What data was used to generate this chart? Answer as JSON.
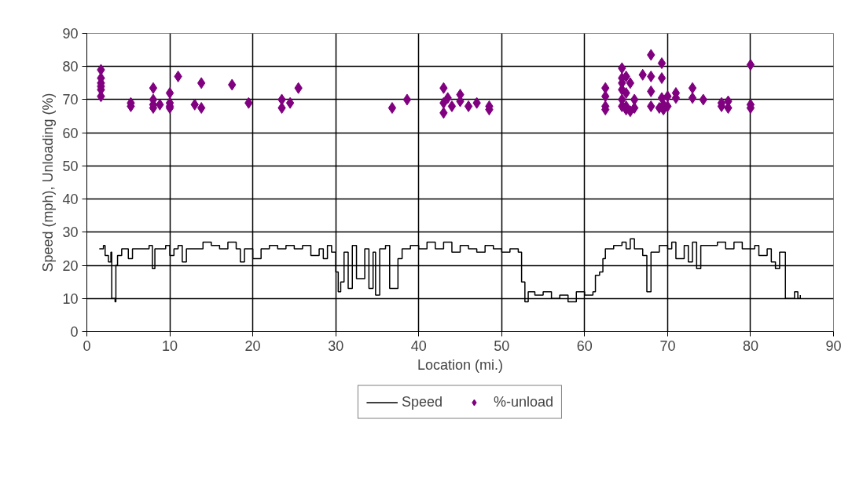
{
  "chart_data": {
    "type": "step",
    "xlabel": "Location (mi.)",
    "ylabel": "Speed (mph), Unloading (%)",
    "xlim": [
      0,
      90
    ],
    "ylim": [
      0,
      90
    ],
    "xticks": [
      0,
      10,
      20,
      30,
      40,
      50,
      60,
      70,
      80,
      90
    ],
    "yticks": [
      0,
      10,
      20,
      30,
      40,
      50,
      60,
      70,
      80,
      90
    ],
    "grid": true,
    "legend": "bottom",
    "series": [
      {
        "name": "Speed",
        "color": "#000000",
        "marker": "none",
        "x": [
          1.5,
          2,
          2.2,
          2.6,
          2.9,
          3.0,
          3.4,
          3.5,
          3.7,
          4.2,
          5,
          5.5,
          6.5,
          7.5,
          7.9,
          8.2,
          9,
          9.5,
          10,
          10.5,
          11,
          11.5,
          12,
          13,
          14,
          15,
          16,
          17,
          18,
          18.5,
          19,
          20,
          21,
          22,
          23,
          24,
          25,
          26,
          27,
          28,
          28.5,
          29,
          29.5,
          30,
          30.3,
          30.6,
          31,
          31.5,
          32,
          32.5,
          33,
          33.5,
          34,
          34.5,
          34.8,
          35.3,
          36,
          36.5,
          37,
          37.5,
          38,
          39,
          40,
          41,
          42,
          43,
          44,
          45,
          46,
          47,
          48,
          49,
          50,
          51,
          52,
          52.4,
          52.8,
          53.2,
          54,
          55,
          56,
          57,
          58,
          59,
          60,
          61,
          61.3,
          61.8,
          62.2,
          62.5,
          63.5,
          64.5,
          65,
          65.5,
          66,
          67,
          67.5,
          68,
          69,
          70,
          70.5,
          71,
          72,
          72.5,
          73,
          73.5,
          74,
          75,
          76,
          77,
          78,
          79,
          80,
          80.5,
          81,
          82,
          82.5,
          83,
          83.5,
          84,
          84.2,
          85,
          85.3,
          85.7,
          86
        ],
        "values": [
          25,
          26,
          23,
          21,
          24,
          10,
          9,
          20,
          23,
          25,
          22,
          25,
          25,
          26,
          19,
          25,
          25,
          26,
          23,
          25,
          26,
          21,
          25,
          25,
          27,
          26,
          25,
          27,
          25,
          21,
          25,
          22,
          25,
          26,
          25,
          26,
          25,
          26,
          23,
          25,
          22,
          26,
          24,
          18,
          12,
          15,
          24,
          13,
          26,
          16,
          16,
          25,
          13,
          24,
          11,
          25,
          26,
          13,
          13,
          22,
          25,
          26,
          25,
          27,
          25,
          27,
          24,
          26,
          25,
          24,
          26,
          25,
          24,
          25,
          24,
          15,
          9,
          12,
          11,
          12,
          10,
          11,
          9,
          12,
          11,
          12,
          17,
          18,
          22,
          25,
          26,
          27,
          25,
          28,
          25,
          23,
          12,
          24,
          26,
          25,
          27,
          22,
          26,
          21,
          27,
          19,
          26,
          26,
          27,
          25,
          27,
          25,
          25,
          26,
          23,
          25,
          21,
          19,
          24,
          24,
          10,
          10,
          12,
          10,
          11
        ]
      },
      {
        "name": "%-unload",
        "type": "scatter",
        "color": "#800080",
        "marker": "diamond",
        "x": [
          1.7,
          1.7,
          1.7,
          1.7,
          1.7,
          1.7,
          5.3,
          5.3,
          8,
          8,
          8,
          8,
          8.8,
          10,
          10,
          10,
          10,
          11,
          13,
          13.8,
          13.8,
          17.5,
          19.5,
          23.5,
          23.5,
          24.5,
          25.5,
          36.8,
          38.6,
          43,
          43,
          43,
          43.5,
          44,
          45,
          45,
          46,
          47,
          48.5,
          48.5,
          62.5,
          62.5,
          62.5,
          62.5,
          64.5,
          64.5,
          64.5,
          64.5,
          64.5,
          64.5,
          65,
          65,
          65,
          65,
          65.5,
          65.5,
          66,
          66,
          67,
          68,
          68,
          68,
          68,
          69,
          69.3,
          69.3,
          69.3,
          69.5,
          69.5,
          70,
          70,
          71,
          71,
          73,
          73,
          74.3,
          76.5,
          76.5,
          77.3,
          77.3,
          80,
          80,
          80
        ],
        "values": [
          79,
          76.5,
          75,
          74,
          73,
          71,
          69,
          68,
          73.5,
          70,
          68.5,
          67.5,
          68.5,
          72,
          68,
          67.5,
          69,
          77,
          68.5,
          75,
          67.5,
          74.5,
          69,
          67.5,
          70,
          69,
          73.5,
          67.5,
          70,
          73.5,
          69,
          66,
          70.5,
          68,
          71.5,
          69.5,
          68,
          69,
          68,
          67,
          73.5,
          71,
          68,
          67,
          79.5,
          76.5,
          75,
          73,
          70,
          68,
          77,
          72,
          68,
          67,
          75,
          66.5,
          70,
          67.5,
          77.5,
          83.5,
          77,
          72.5,
          68,
          67.5,
          81,
          76.5,
          70.5,
          67,
          68.5,
          71,
          68,
          72,
          70.5,
          73.5,
          70.5,
          70,
          69,
          68,
          69.5,
          67.5,
          80.5,
          68.5,
          67.5
        ]
      }
    ]
  }
}
